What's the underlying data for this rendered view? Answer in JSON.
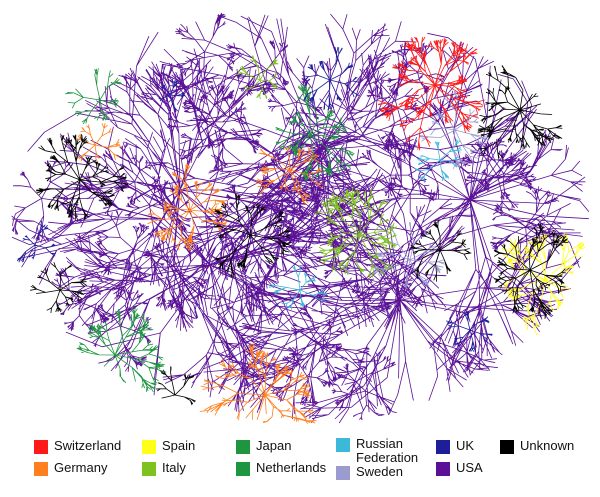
{
  "legend": [
    {
      "label": "Switzerland",
      "color": "#ff1a1a"
    },
    {
      "label": "Germany",
      "color": "#ff7f1e"
    },
    {
      "label": "Spain",
      "color": "#ffff1a"
    },
    {
      "label": "Italy",
      "color": "#7dc21e"
    },
    {
      "label": "Japan",
      "color": "#1e9640"
    },
    {
      "label": "Netherlands",
      "color": "#1e9640"
    },
    {
      "label": "Russian\nFederation",
      "color": "#3cb9d8"
    },
    {
      "label": "Sweden",
      "color": "#9b9bd0"
    },
    {
      "label": "UK",
      "color": "#1e1e9a"
    },
    {
      "label": "USA",
      "color": "#5a1196"
    },
    {
      "label": "Unknown",
      "color": "#000000"
    }
  ]
}
